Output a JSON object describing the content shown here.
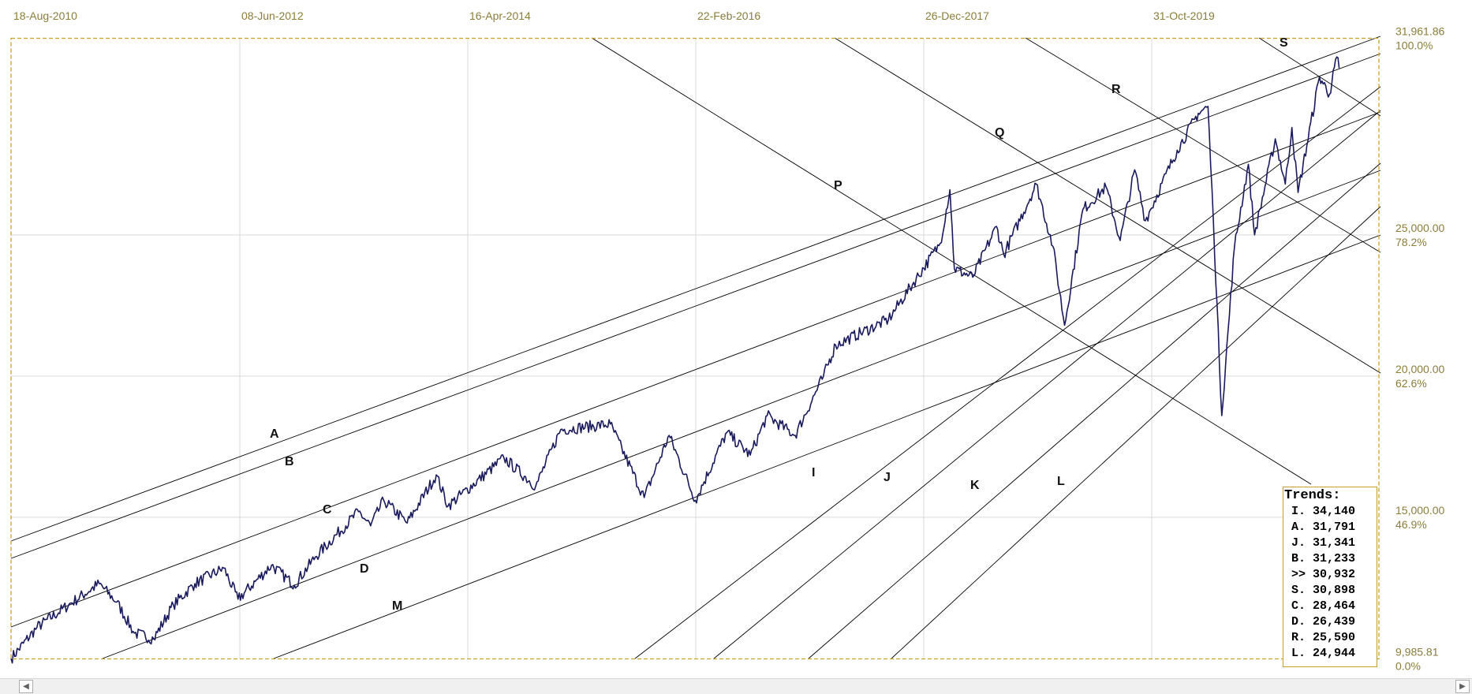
{
  "chart_data": {
    "type": "line",
    "title": "",
    "x_tick_labels": [
      "18-Aug-2010",
      "08-Jun-2012",
      "16-Apr-2014",
      "22-Feb-2016",
      "26-Dec-2017",
      "31-Oct-2019"
    ],
    "y_axis": {
      "range": [
        9985.81,
        31961.86
      ],
      "levels": [
        {
          "value": 31961.86,
          "value_label": "31,961.86",
          "pct_label": "100.0%"
        },
        {
          "value": 25000,
          "value_label": "25,000.00",
          "pct_label": "78.2%"
        },
        {
          "value": 20000,
          "value_label": "20,000.00",
          "pct_label": "62.6%"
        },
        {
          "value": 15000,
          "value_label": "15,000.00",
          "pct_label": "46.9%"
        },
        {
          "value": 9985.81,
          "value_label": "9,985.81",
          "pct_label": "0.0%"
        }
      ]
    },
    "series": [
      {
        "color": "#1a1a5e",
        "points": [
          [
            "2010-08-18",
            10000
          ],
          [
            "2010-11-01",
            11100
          ],
          [
            "2011-02-01",
            11900
          ],
          [
            "2011-04-30",
            12650
          ],
          [
            "2011-06-20",
            12000
          ],
          [
            "2011-08-10",
            10900
          ],
          [
            "2011-10-05",
            10700
          ],
          [
            "2011-12-01",
            11900
          ],
          [
            "2012-02-01",
            12650
          ],
          [
            "2012-04-25",
            13200
          ],
          [
            "2012-06-05",
            12100
          ],
          [
            "2012-09-10",
            13300
          ],
          [
            "2012-11-15",
            12600
          ],
          [
            "2013-01-15",
            13600
          ],
          [
            "2013-05-20",
            15200
          ],
          [
            "2013-06-24",
            14700
          ],
          [
            "2013-08-01",
            15600
          ],
          [
            "2013-10-08",
            14800
          ],
          [
            "2013-12-31",
            16500
          ],
          [
            "2014-02-03",
            15400
          ],
          [
            "2014-07-15",
            17100
          ],
          [
            "2014-10-15",
            16100
          ],
          [
            "2014-12-26",
            18100
          ],
          [
            "2015-05-19",
            18300
          ],
          [
            "2015-08-25",
            15700
          ],
          [
            "2015-11-05",
            17900
          ],
          [
            "2016-01-20",
            15600
          ],
          [
            "2016-04-20",
            18000
          ],
          [
            "2016-06-27",
            17200
          ],
          [
            "2016-08-15",
            18600
          ],
          [
            "2016-11-04",
            17900
          ],
          [
            "2017-01-25",
            20000
          ],
          [
            "2017-03-01",
            21100
          ],
          [
            "2017-08-01",
            22000
          ],
          [
            "2017-12-29",
            24700
          ],
          [
            "2018-01-26",
            26600
          ],
          [
            "2018-02-08",
            23800
          ],
          [
            "2018-04-02",
            23500
          ],
          [
            "2018-06-10",
            25300
          ],
          [
            "2018-07-01",
            24300
          ],
          [
            "2018-10-03",
            26800
          ],
          [
            "2018-11-20",
            24600
          ],
          [
            "2018-12-24",
            21800
          ],
          [
            "2019-02-15",
            25900
          ],
          [
            "2019-04-23",
            26700
          ],
          [
            "2019-06-03",
            24800
          ],
          [
            "2019-07-15",
            27300
          ],
          [
            "2019-08-15",
            25500
          ],
          [
            "2019-11-15",
            28000
          ],
          [
            "2020-01-15",
            29300
          ],
          [
            "2020-02-12",
            29550
          ],
          [
            "2020-02-28",
            25400
          ],
          [
            "2020-03-23",
            18600
          ],
          [
            "2020-04-29",
            24600
          ],
          [
            "2020-06-08",
            27500
          ],
          [
            "2020-06-26",
            25000
          ],
          [
            "2020-08-25",
            28400
          ],
          [
            "2020-09-23",
            26800
          ],
          [
            "2020-10-12",
            28800
          ],
          [
            "2020-10-30",
            26500
          ],
          [
            "2020-12-31",
            30600
          ],
          [
            "2021-01-29",
            29980
          ],
          [
            "2021-02-19",
            31300
          ],
          [
            "2021-02-26",
            30900
          ]
        ]
      }
    ],
    "trend_labels": [
      "A",
      "B",
      "C",
      "D",
      "M",
      "I",
      "J",
      "K",
      "L",
      "P",
      "Q",
      "R",
      "S"
    ],
    "legend": {
      "title": "Trends:",
      "rows": [
        "I. 34,140",
        "A. 31,791",
        "J. 31,341",
        "B. 31,233",
        ">> 30,932",
        "S. 30,898",
        "C. 28,464",
        "D. 26,439",
        "R. 25,590",
        "L. 24,944"
      ]
    },
    "grid": true,
    "colors": {
      "price_line": "#1a1a5e",
      "frame": "#c9a227",
      "trend_lines": "#000000",
      "axis_text": "#8b7d3a"
    }
  },
  "scrollbar": {
    "left_arrow": "◀",
    "right_arrow": "▶"
  }
}
